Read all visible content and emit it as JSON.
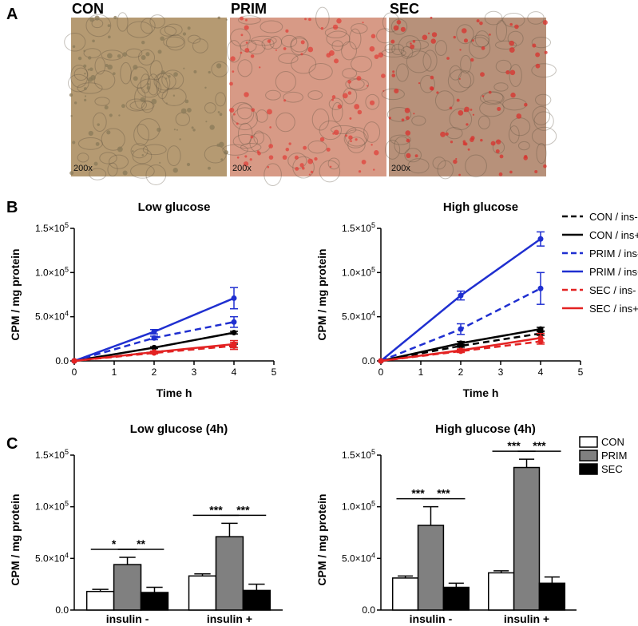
{
  "panel_labels": {
    "a": "A",
    "b": "B",
    "c": "C"
  },
  "micrographs": [
    {
      "label": "CON",
      "magnification": "200x",
      "base_color": "#b59a72",
      "spot_color": "#8a7a5a"
    },
    {
      "label": "PRIM",
      "magnification": "200x",
      "base_color": "#d79a86",
      "spot_color": "#e0403a"
    },
    {
      "label": "SEC",
      "magnification": "200x",
      "base_color": "#b7917a",
      "spot_color": "#d8322e"
    }
  ],
  "legend_b": [
    {
      "label": "CON / ins-",
      "color": "#000000",
      "dash": true
    },
    {
      "label": "CON / ins+",
      "color": "#000000",
      "dash": false
    },
    {
      "label": "PRIM / ins-",
      "color": "#1f2fd0",
      "dash": true
    },
    {
      "label": "PRIM / ins+",
      "color": "#1f2fd0",
      "dash": false
    },
    {
      "label": "SEC / ins-",
      "color": "#e32222",
      "dash": true
    },
    {
      "label": "SEC / ins+",
      "color": "#e32222",
      "dash": false
    }
  ],
  "legend_c": [
    {
      "label": "CON",
      "color": "#ffffff"
    },
    {
      "label": "PRIM",
      "color": "#808080"
    },
    {
      "label": "SEC",
      "color": "#000000"
    }
  ],
  "chart_data": [
    {
      "type": "line",
      "title": "Low glucose",
      "xlabel": "Time h",
      "ylabel": "CPM / mg protein",
      "xlim": [
        0,
        5
      ],
      "ylim": [
        0,
        150000
      ],
      "x_ticks": [
        "0",
        "1",
        "2",
        "3",
        "4",
        "5"
      ],
      "y_ticks": [
        {
          "value": 0,
          "base": "0.0",
          "exp": ""
        },
        {
          "value": 50000,
          "base": "5.0×10",
          "exp": "4"
        },
        {
          "value": 100000,
          "base": "1.0×10",
          "exp": "5"
        },
        {
          "value": 150000,
          "base": "1.5×10",
          "exp": "5"
        }
      ],
      "x": [
        0,
        2,
        4
      ],
      "series": [
        {
          "name": "CON / ins-",
          "values": [
            0,
            10000,
            17000
          ],
          "errors": [
            0,
            1000,
            2000
          ]
        },
        {
          "name": "CON / ins+",
          "values": [
            0,
            15000,
            32000
          ],
          "errors": [
            0,
            1000,
            1500
          ]
        },
        {
          "name": "PRIM / ins-",
          "values": [
            0,
            26000,
            44000
          ],
          "errors": [
            0,
            2000,
            6000
          ]
        },
        {
          "name": "PRIM / ins+",
          "values": [
            0,
            33000,
            71000
          ],
          "errors": [
            0,
            2500,
            12000
          ]
        },
        {
          "name": "SEC / ins-",
          "values": [
            0,
            9000,
            17000
          ],
          "errors": [
            0,
            1000,
            4000
          ]
        },
        {
          "name": "SEC / ins+",
          "values": [
            0,
            10000,
            19000
          ],
          "errors": [
            0,
            1000,
            4000
          ]
        }
      ]
    },
    {
      "type": "line",
      "title": "High glucose",
      "xlabel": "Time h",
      "ylabel": "CPM / mg protein",
      "xlim": [
        0,
        5
      ],
      "ylim": [
        0,
        150000
      ],
      "x_ticks": [
        "0",
        "1",
        "2",
        "3",
        "4",
        "5"
      ],
      "y_ticks": [
        {
          "value": 0,
          "base": "0.0",
          "exp": ""
        },
        {
          "value": 50000,
          "base": "5.0×10",
          "exp": "4"
        },
        {
          "value": 100000,
          "base": "1.0×10",
          "exp": "5"
        },
        {
          "value": 150000,
          "base": "1.5×10",
          "exp": "5"
        }
      ],
      "x": [
        0,
        2,
        4
      ],
      "series": [
        {
          "name": "CON / ins-",
          "values": [
            0,
            17000,
            31000
          ],
          "errors": [
            0,
            1500,
            2000
          ]
        },
        {
          "name": "CON / ins+",
          "values": [
            0,
            20000,
            36000
          ],
          "errors": [
            0,
            2000,
            2000
          ]
        },
        {
          "name": "PRIM / ins-",
          "values": [
            0,
            36000,
            82000
          ],
          "errors": [
            0,
            6000,
            18000
          ]
        },
        {
          "name": "PRIM / ins+",
          "values": [
            0,
            74000,
            138000
          ],
          "errors": [
            0,
            5000,
            8000
          ]
        },
        {
          "name": "SEC / ins-",
          "values": [
            0,
            11000,
            22000
          ],
          "errors": [
            0,
            1500,
            3000
          ]
        },
        {
          "name": "SEC / ins+",
          "values": [
            0,
            12000,
            26000
          ],
          "errors": [
            0,
            1500,
            5000
          ]
        }
      ]
    },
    {
      "type": "bar",
      "title": "Low glucose (4h)",
      "xlabel": "",
      "ylabel": "CPM / mg protein",
      "ylim": [
        0,
        150000
      ],
      "y_ticks": [
        {
          "value": 0,
          "base": "0.0",
          "exp": ""
        },
        {
          "value": 50000,
          "base": "5.0×10",
          "exp": "4"
        },
        {
          "value": 100000,
          "base": "1.0×10",
          "exp": "5"
        },
        {
          "value": 150000,
          "base": "1.5×10",
          "exp": "5"
        }
      ],
      "categories": [
        "insulin -",
        "insulin +"
      ],
      "series": [
        {
          "name": "CON",
          "values": [
            18000,
            33000
          ],
          "errors": [
            2000,
            2000
          ]
        },
        {
          "name": "PRIM",
          "values": [
            44000,
            71000
          ],
          "errors": [
            7000,
            13000
          ]
        },
        {
          "name": "SEC",
          "values": [
            17000,
            19000
          ],
          "errors": [
            5000,
            6000
          ]
        }
      ],
      "significance": [
        {
          "group": 0,
          "from": 0,
          "to": 1,
          "label": "*"
        },
        {
          "group": 0,
          "from": 1,
          "to": 2,
          "label": "**"
        },
        {
          "group": 1,
          "from": 0,
          "to": 1,
          "label": "***"
        },
        {
          "group": 1,
          "from": 1,
          "to": 2,
          "label": "***"
        }
      ]
    },
    {
      "type": "bar",
      "title": "High glucose (4h)",
      "xlabel": "",
      "ylabel": "CPM / mg protein",
      "ylim": [
        0,
        150000
      ],
      "y_ticks": [
        {
          "value": 0,
          "base": "0.0",
          "exp": ""
        },
        {
          "value": 50000,
          "base": "5.0×10",
          "exp": "4"
        },
        {
          "value": 100000,
          "base": "1.0×10",
          "exp": "5"
        },
        {
          "value": 150000,
          "base": "1.5×10",
          "exp": "5"
        }
      ],
      "categories": [
        "insulin -",
        "insulin +"
      ],
      "series": [
        {
          "name": "CON",
          "values": [
            31000,
            36000
          ],
          "errors": [
            2000,
            2000
          ]
        },
        {
          "name": "PRIM",
          "values": [
            82000,
            138000
          ],
          "errors": [
            18000,
            8000
          ]
        },
        {
          "name": "SEC",
          "values": [
            22000,
            26000
          ],
          "errors": [
            4000,
            6000
          ]
        }
      ],
      "significance": [
        {
          "group": 0,
          "from": 0,
          "to": 1,
          "label": "***"
        },
        {
          "group": 0,
          "from": 1,
          "to": 2,
          "label": "***"
        },
        {
          "group": 1,
          "from": 0,
          "to": 1,
          "label": "***"
        },
        {
          "group": 1,
          "from": 1,
          "to": 2,
          "label": "***"
        }
      ]
    }
  ]
}
